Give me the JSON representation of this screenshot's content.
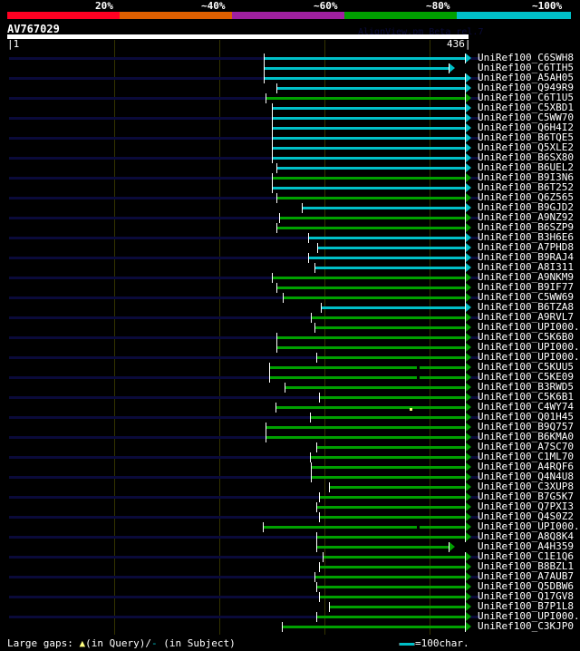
{
  "scale": {
    "labels": [
      "20%",
      "~40%",
      "~60%",
      "~80%",
      "~100%"
    ],
    "colors": [
      "#ff0022",
      "#e06000",
      "#a020a0",
      "#00a000",
      "#00c0c8"
    ]
  },
  "query": {
    "name": "AV767029",
    "watermark": "AlignView.pm Beta rel.7",
    "start_label": "|1",
    "end_label": "436|",
    "length": 436
  },
  "hits": [
    {
      "name": "UniRef100_C6SWH8",
      "start": 243,
      "end": 434,
      "color": "cyan"
    },
    {
      "name": "UniRef100_C6TIH5",
      "start": 243,
      "end": 419,
      "color": "cyan"
    },
    {
      "name": "UniRef100_A5AH05",
      "start": 243,
      "end": 434,
      "color": "cyan"
    },
    {
      "name": "UniRef100_Q949R9",
      "start": 255,
      "end": 434,
      "color": "cyan"
    },
    {
      "name": "UniRef100_C6T1U5",
      "start": 245,
      "end": 434,
      "color": "green"
    },
    {
      "name": "UniRef100_C5XBD1",
      "start": 251,
      "end": 434,
      "color": "cyan"
    },
    {
      "name": "UniRef100_C5WW70",
      "start": 251,
      "end": 434,
      "color": "cyan"
    },
    {
      "name": "UniRef100_Q6H4I2",
      "start": 251,
      "end": 434,
      "color": "cyan"
    },
    {
      "name": "UniRef100_B6TQE5",
      "start": 251,
      "end": 434,
      "color": "cyan"
    },
    {
      "name": "UniRef100_Q5XLE2",
      "start": 251,
      "end": 434,
      "color": "cyan"
    },
    {
      "name": "UniRef100_B6SX80",
      "start": 251,
      "end": 434,
      "color": "cyan"
    },
    {
      "name": "UniRef100_B6UEL2",
      "start": 255,
      "end": 434,
      "color": "cyan"
    },
    {
      "name": "UniRef100_B9I3N6",
      "start": 251,
      "end": 434,
      "color": "green"
    },
    {
      "name": "UniRef100_B6T252",
      "start": 251,
      "end": 434,
      "color": "cyan"
    },
    {
      "name": "UniRef100_Q6Z565",
      "start": 255,
      "end": 434,
      "color": "green"
    },
    {
      "name": "UniRef100_B9GJD2",
      "start": 279,
      "end": 434,
      "color": "cyan"
    },
    {
      "name": "UniRef100_A9NZ92",
      "start": 258,
      "end": 434,
      "color": "green"
    },
    {
      "name": "UniRef100_B6SZP9",
      "start": 255,
      "end": 434,
      "color": "green"
    },
    {
      "name": "UniRef100_B3H6E6",
      "start": 285,
      "end": 434,
      "color": "cyan"
    },
    {
      "name": "UniRef100_A7PHD8",
      "start": 294,
      "end": 434,
      "color": "cyan"
    },
    {
      "name": "UniRef100_B9RAJ4",
      "start": 285,
      "end": 434,
      "color": "cyan"
    },
    {
      "name": "UniRef100_A8I311",
      "start": 291,
      "end": 434,
      "color": "cyan"
    },
    {
      "name": "UniRef100_A9NKM9",
      "start": 251,
      "end": 434,
      "color": "green"
    },
    {
      "name": "UniRef100_B9IF77",
      "start": 255,
      "end": 434,
      "color": "green"
    },
    {
      "name": "UniRef100_C5WW69",
      "start": 261,
      "end": 434,
      "color": "green"
    },
    {
      "name": "UniRef100_B6TZA8",
      "start": 297,
      "end": 434,
      "color": "cyan"
    },
    {
      "name": "UniRef100_A9RVL7",
      "start": 288,
      "end": 434,
      "color": "green"
    },
    {
      "name": "UniRef100_UPI000..",
      "start": 291,
      "end": 434,
      "color": "green"
    },
    {
      "name": "UniRef100_C5K6B0",
      "start": 255,
      "end": 434,
      "color": "green"
    },
    {
      "name": "UniRef100_UPI000..",
      "start": 255,
      "end": 434,
      "color": "green"
    },
    {
      "name": "UniRef100_UPI000..",
      "start": 293,
      "end": 434,
      "color": "green"
    },
    {
      "name": "UniRef100_C5KUU5",
      "start": 248,
      "end": 434,
      "color": "green",
      "subject_gap": 389
    },
    {
      "name": "UniRef100_C5KE09",
      "start": 248,
      "end": 434,
      "color": "green",
      "subject_gap": 389
    },
    {
      "name": "UniRef100_B3RWD5",
      "start": 263,
      "end": 434,
      "color": "green"
    },
    {
      "name": "UniRef100_C5K6B1",
      "start": 296,
      "end": 434,
      "color": "green"
    },
    {
      "name": "UniRef100_C4WY74",
      "start": 254,
      "end": 434,
      "color": "green",
      "query_gap": 382
    },
    {
      "name": "UniRef100_Q01H45",
      "start": 287,
      "end": 434,
      "color": "green"
    },
    {
      "name": "UniRef100_B9Q757",
      "start": 245,
      "end": 434,
      "color": "green"
    },
    {
      "name": "UniRef100_B6KMA0",
      "start": 245,
      "end": 434,
      "color": "green"
    },
    {
      "name": "UniRef100_A7SC70",
      "start": 293,
      "end": 434,
      "color": "green"
    },
    {
      "name": "UniRef100_C1ML70",
      "start": 287,
      "end": 434,
      "color": "green"
    },
    {
      "name": "UniRef100_A4RQF6",
      "start": 288,
      "end": 434,
      "color": "green"
    },
    {
      "name": "UniRef100_Q4N4U8",
      "start": 288,
      "end": 434,
      "color": "green"
    },
    {
      "name": "UniRef100_C3XUP8",
      "start": 305,
      "end": 434,
      "color": "green"
    },
    {
      "name": "UniRef100_B7G5K7",
      "start": 296,
      "end": 434,
      "color": "green"
    },
    {
      "name": "UniRef100_Q7PXI3",
      "start": 293,
      "end": 434,
      "color": "green"
    },
    {
      "name": "UniRef100_Q4S0Z2",
      "start": 296,
      "end": 434,
      "color": "green"
    },
    {
      "name": "UniRef100_UPI000..",
      "start": 242,
      "end": 434,
      "color": "green",
      "subject_gap": 389
    },
    {
      "name": "UniRef100_A8Q8K4",
      "start": 293,
      "end": 434,
      "color": "green"
    },
    {
      "name": "UniRef100_A4H359",
      "start": 293,
      "end": 419,
      "color": "green"
    },
    {
      "name": "UniRef100_C1E1Q6",
      "start": 299,
      "end": 434,
      "color": "green"
    },
    {
      "name": "UniRef100_B8BZL1",
      "start": 296,
      "end": 434,
      "color": "green"
    },
    {
      "name": "UniRef100_A7AUB7",
      "start": 291,
      "end": 434,
      "color": "green"
    },
    {
      "name": "UniRef100_Q5DBW6",
      "start": 293,
      "end": 434,
      "color": "green"
    },
    {
      "name": "UniRef100_Q17GV8",
      "start": 296,
      "end": 434,
      "color": "green"
    },
    {
      "name": "UniRef100_B7P1L8",
      "start": 305,
      "end": 434,
      "color": "green"
    },
    {
      "name": "UniRef100_UPI000..",
      "start": 293,
      "end": 434,
      "color": "green"
    },
    {
      "name": "UniRef100_C3KJP0",
      "start": 260,
      "end": 434,
      "color": "green"
    }
  ],
  "colors": {
    "cyan": "#00c0c8",
    "green": "#00a000"
  },
  "legend": {
    "gaps_text": "Large gaps:",
    "in_query": "(in Query)/",
    "in_subject": "(in Subject)",
    "scale_text": "=100char."
  }
}
